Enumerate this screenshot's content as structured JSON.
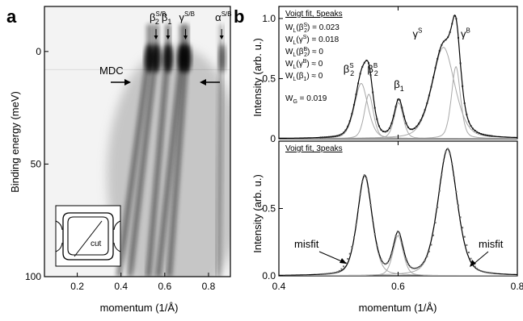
{
  "chart_data": [
    {
      "panel": "a",
      "type": "heatmap",
      "xlabel": "momentum (1/Å)",
      "ylabel": "Binding energy (meV)",
      "xlim": [
        0.05,
        0.9
      ],
      "ylim": [
        100,
        -20
      ],
      "xticks": [
        "0.2",
        "0.4",
        "0.6",
        "0.8"
      ],
      "yticks": [
        "0",
        "50",
        "100"
      ],
      "band_labels": [
        {
          "base": "β",
          "sub": "2",
          "sup": "S/B",
          "k": 0.56
        },
        {
          "base": "β",
          "sub": "1",
          "sup": "",
          "k": 0.615
        },
        {
          "base": "γ",
          "sub": "",
          "sup": "S/B",
          "k": 0.695
        },
        {
          "base": "α",
          "sub": "",
          "sup": "S/B",
          "k": 0.86
        }
      ],
      "bands_k_at_ef": [
        0.53,
        0.56,
        0.615,
        0.68,
        0.7,
        0.855,
        0.87
      ],
      "annotations": {
        "mdc": "MDC",
        "mdc_energy": 8,
        "inset_cut": "cut"
      },
      "grid": false
    },
    {
      "panel": "b-top",
      "type": "line",
      "title": "Voigt fit, 5peaks",
      "ylabel": "Intensity (arb. u.)",
      "xlim": [
        0.4,
        0.8
      ],
      "ylim": [
        0,
        1.1
      ],
      "xticks": [
        "0.4",
        "0.6",
        "0.8"
      ],
      "yticks": [
        "0",
        "0.5",
        "1.0"
      ],
      "fit_params": [
        {
          "label": "W",
          "sub": "L",
          "arg": "β",
          "argsub": "2",
          "argsup": "S",
          "val": "= 0.023"
        },
        {
          "label": "W",
          "sub": "L",
          "arg": "γ",
          "argsub": "",
          "argsup": "S",
          "val": "= 0.018"
        },
        {
          "label": "W",
          "sub": "L",
          "arg": "β",
          "argsub": "2",
          "argsup": "B",
          "val": "≈ 0"
        },
        {
          "label": "W",
          "sub": "L",
          "arg": "γ",
          "argsub": "",
          "argsup": "B",
          "val": "≈ 0"
        },
        {
          "label": "W",
          "sub": "L",
          "arg": "β",
          "argsub": "1",
          "argsup": "",
          "val": "≈ 0"
        }
      ],
      "wg": {
        "label": "W",
        "sub": "G",
        "val": "= 0.019"
      },
      "peaks": [
        {
          "base": "β",
          "sub": "2",
          "sup": "S",
          "center": 0.538,
          "amp": 0.46,
          "width": 0.012
        },
        {
          "base": "β",
          "sub": "2",
          "sup": "B",
          "center": 0.551,
          "amp": 0.37,
          "width": 0.008
        },
        {
          "base": "β",
          "sub": "1",
          "sup": "",
          "center": 0.601,
          "amp": 0.3,
          "width": 0.008
        },
        {
          "base": "γ",
          "sub": "",
          "sup": "S",
          "center": 0.676,
          "amp": 0.76,
          "width": 0.02
        },
        {
          "base": "γ",
          "sub": "",
          "sup": "B",
          "center": 0.697,
          "amp": 0.6,
          "width": 0.008
        }
      ],
      "total_peak_heights": {
        "beta2": 0.79,
        "beta1": 0.32,
        "gamma": 1.0
      }
    },
    {
      "panel": "b-bottom",
      "type": "line",
      "title": "Voigt fit, 3peaks",
      "xlabel": "momentum (1/Å)",
      "ylabel": "Intensity (arb. u.)",
      "xlim": [
        0.4,
        0.8
      ],
      "ylim": [
        0,
        1.0
      ],
      "xticks": [
        "0.4",
        "0.6",
        "0.8"
      ],
      "yticks": [
        "0.0",
        "0.5"
      ],
      "peaks": [
        {
          "center": 0.544,
          "amp": 0.74,
          "width": 0.013
        },
        {
          "center": 0.6,
          "amp": 0.3,
          "width": 0.009
        },
        {
          "center": 0.683,
          "amp": 0.94,
          "width": 0.017
        }
      ],
      "annotations": [
        "misfit",
        "misfit"
      ]
    }
  ],
  "labels": {
    "a": "a",
    "b": "b"
  }
}
